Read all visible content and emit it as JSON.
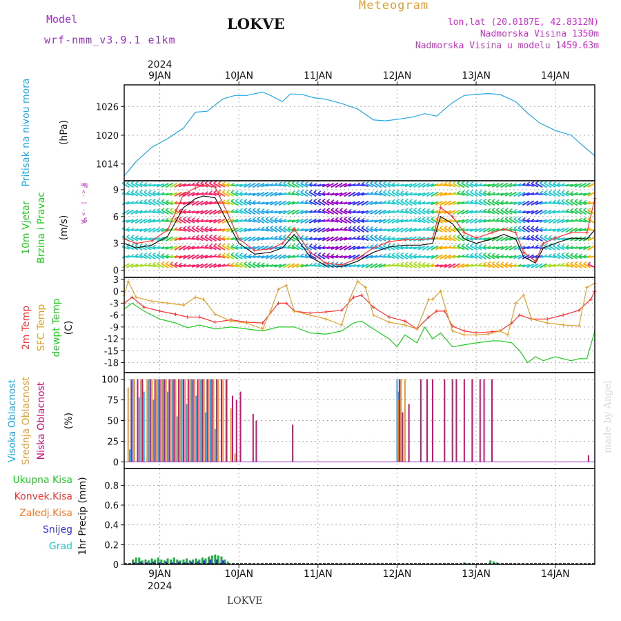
{
  "header": {
    "model_label": "Model",
    "model_name": "wrf-nmm_v3.9.1 e1km",
    "station": "LOKVE",
    "chart_kind": "Meteogram",
    "coords": "lon,lat (20.0187E, 42.8312N)",
    "elevation": "Nadmorska Visina 1350m",
    "model_elevation": "Nadmorska Visina u modelu 1459.63m"
  },
  "footer": {
    "station": "LOKVE",
    "credit": "made by Angel"
  },
  "colors": {
    "pressure": "#22a7e6",
    "wind_speed": "#111111",
    "gust": "#ff3333",
    "temp": "#ff3333",
    "sfc_temp": "#e0a030",
    "dewpt": "#22cc22",
    "high_cloud": "#22a7e6",
    "mid_cloud": "#e0a030",
    "low_cloud": "#cc1177",
    "total_precip": "#22aa44",
    "conv_precip": "#ff3333",
    "frozen_precip": "#ff7722",
    "snow": "#3333dd",
    "graupel": "#22cccc",
    "model_text": "#9933cc",
    "meta_text": "#cc33cc",
    "title_orange": "#e0a030"
  },
  "chart_data": [
    {
      "type": "line",
      "panel": "pressure",
      "ylabel": [
        "Pritisak na nivou mora",
        "(hPa)"
      ],
      "ylabel_colors": [
        "#22a7e6",
        "#111111"
      ],
      "yticks": [
        1014,
        1020,
        1026
      ],
      "ylim": [
        1010.5,
        1030.5
      ],
      "grid": true,
      "x_range": [
        8.55,
        14.5
      ],
      "series": [
        {
          "color": "#22a7e6",
          "x": [
            8.55,
            8.7,
            8.9,
            9.1,
            9.3,
            9.45,
            9.6,
            9.8,
            9.95,
            10.1,
            10.3,
            10.4,
            10.55,
            10.65,
            10.8,
            10.95,
            11.1,
            11.3,
            11.5,
            11.7,
            11.85,
            12.0,
            12.2,
            12.35,
            12.5,
            12.7,
            12.85,
            13.0,
            13.15,
            13.3,
            13.5,
            13.65,
            13.8,
            14.0,
            14.2,
            14.35,
            14.5
          ],
          "values": [
            1011.5,
            1014.5,
            1017.5,
            1019.3,
            1021.5,
            1024.8,
            1025,
            1027.6,
            1028.3,
            1028.3,
            1029,
            1028.3,
            1027,
            1028.6,
            1028.5,
            1027.8,
            1027.5,
            1026.6,
            1025.5,
            1023.2,
            1023,
            1023.3,
            1023.8,
            1024.5,
            1024,
            1026.8,
            1028.3,
            1028.5,
            1028.7,
            1028.5,
            1027,
            1024.6,
            1022.6,
            1021,
            1020,
            1017.8,
            1015.7
          ]
        }
      ]
    },
    {
      "type": "line",
      "panel": "wind",
      "ylabel": [
        "10m Vjetar",
        "Brzina i Pravac",
        "(m/s)"
      ],
      "ylabel_colors": [
        "#22cc22",
        "#22cc22",
        "#111111"
      ],
      "compass": [
        "N",
        "W <- | -> E",
        "S"
      ],
      "yticks": [
        0,
        3,
        6,
        9
      ],
      "ylim": [
        -0.8,
        10
      ],
      "grid": true,
      "series": [
        {
          "name": "speed",
          "color": "#111111",
          "x": [
            8.55,
            8.7,
            8.9,
            9.1,
            9.3,
            9.45,
            9.55,
            9.7,
            9.85,
            10.0,
            10.2,
            10.4,
            10.55,
            10.7,
            10.9,
            11.1,
            11.3,
            11.5,
            11.7,
            11.9,
            12.1,
            12.3,
            12.45,
            12.55,
            12.7,
            12.85,
            13.0,
            13.2,
            13.35,
            13.5,
            13.6,
            13.75,
            13.85,
            14.0,
            14.2,
            14.4,
            14.5
          ],
          "values": [
            3,
            2.5,
            2.8,
            3.8,
            7,
            8,
            8.3,
            8.1,
            5.5,
            3,
            1.8,
            2,
            2.5,
            4,
            1.5,
            0.5,
            0.4,
            1,
            2,
            2.6,
            2.8,
            2.8,
            3,
            6,
            5.2,
            3.5,
            3,
            3.5,
            4,
            3.5,
            1.5,
            0.8,
            2.5,
            3,
            3.6,
            3.5,
            4.5
          ]
        },
        {
          "name": "gust",
          "color": "#ff3333",
          "x": [
            8.55,
            8.7,
            8.9,
            9.1,
            9.3,
            9.45,
            9.55,
            9.7,
            9.85,
            10.0,
            10.2,
            10.4,
            10.55,
            10.7,
            10.9,
            11.1,
            11.3,
            11.5,
            11.7,
            11.9,
            12.1,
            12.3,
            12.45,
            12.55,
            12.7,
            12.85,
            13.0,
            13.2,
            13.35,
            13.5,
            13.6,
            13.75,
            13.85,
            14.0,
            14.2,
            14.4,
            14.5
          ],
          "values": [
            3.5,
            3,
            3.3,
            4.5,
            8.5,
            9.2,
            9.5,
            9.3,
            6.5,
            3.5,
            2.2,
            2.4,
            3,
            4.6,
            2,
            0.8,
            0.6,
            1.3,
            2.5,
            3.2,
            3.4,
            3.4,
            3.6,
            7,
            6,
            4.2,
            3.6,
            4.2,
            4.6,
            4.2,
            2,
            1,
            3,
            3.6,
            4.2,
            4.2,
            8
          ]
        }
      ],
      "arrow_band_levels": [
        0.5,
        1.5,
        2.5,
        3.5,
        4.5,
        5.5,
        6.5,
        7.5,
        8.5,
        9.5
      ],
      "arrow_colors_by_speed": [
        "#9900cc",
        "#3333ff",
        "#22a7e6",
        "#22cccc",
        "#22cc55",
        "#aadd22",
        "#ffaa00",
        "#ff5533",
        "#ff2266"
      ]
    },
    {
      "type": "line",
      "panel": "temperature",
      "ylabel": [
        "2m Temp",
        "SFC Temp",
        "dewpt Temp",
        "(C)"
      ],
      "ylabel_colors": [
        "#ff3333",
        "#e0a030",
        "#22cc22",
        "#111111"
      ],
      "yticks": [
        3,
        0,
        -3,
        -6,
        -9,
        -12,
        -15,
        -18
      ],
      "ylim": [
        -20.5,
        3.5
      ],
      "grid": true,
      "series": [
        {
          "name": "2m Temp",
          "color": "#ff3333",
          "x": [
            8.55,
            8.65,
            8.8,
            9.0,
            9.2,
            9.35,
            9.5,
            9.7,
            9.9,
            10.1,
            10.3,
            10.5,
            10.6,
            10.7,
            10.9,
            11.1,
            11.3,
            11.45,
            11.55,
            11.7,
            11.9,
            12.1,
            12.25,
            12.4,
            12.5,
            12.6,
            12.7,
            12.85,
            13.0,
            13.2,
            13.3,
            13.45,
            13.55,
            13.7,
            13.9,
            14.1,
            14.3,
            14.45,
            14.5
          ],
          "values": [
            -3,
            -1.5,
            -4,
            -5,
            -5.8,
            -6.5,
            -6.5,
            -7.8,
            -7.2,
            -7.8,
            -8,
            -3,
            -3,
            -5,
            -5.5,
            -5.2,
            -4.8,
            -1.5,
            -1,
            -4,
            -6.5,
            -7.5,
            -9.5,
            -6.5,
            -5,
            -5,
            -8.8,
            -10,
            -10.5,
            -10.2,
            -10,
            -8,
            -6,
            -7,
            -7,
            -6,
            -4.8,
            -2,
            0
          ]
        },
        {
          "name": "SFC Temp",
          "color": "#e0a030",
          "x": [
            8.55,
            8.6,
            8.7,
            8.9,
            9.1,
            9.3,
            9.45,
            9.55,
            9.7,
            9.9,
            10.1,
            10.3,
            10.4,
            10.5,
            10.6,
            10.7,
            10.9,
            11.1,
            11.3,
            11.4,
            11.5,
            11.6,
            11.7,
            11.9,
            12.1,
            12.25,
            12.4,
            12.45,
            12.55,
            12.7,
            12.85,
            13.0,
            13.15,
            13.3,
            13.4,
            13.5,
            13.6,
            13.7,
            13.9,
            14.1,
            14.3,
            14.4,
            14.5
          ],
          "values": [
            -1,
            2.5,
            -1.5,
            -2.5,
            -3,
            -3.5,
            -1.5,
            -2,
            -5.8,
            -7.5,
            -8,
            -9.5,
            -5,
            0.5,
            1.5,
            -5,
            -6,
            -7,
            -8.5,
            -2,
            2.5,
            1,
            -6,
            -7.8,
            -8.5,
            -9.5,
            -2,
            -2,
            0,
            -10,
            -11,
            -11,
            -10.8,
            -10,
            -11,
            -3,
            -1,
            -7,
            -8,
            -8.5,
            -8.7,
            1,
            2
          ]
        },
        {
          "name": "dewpt Temp",
          "color": "#22cc22",
          "x": [
            8.55,
            8.65,
            8.8,
            9.0,
            9.2,
            9.35,
            9.5,
            9.7,
            9.9,
            10.1,
            10.3,
            10.5,
            10.7,
            10.9,
            11.1,
            11.3,
            11.45,
            11.55,
            11.7,
            11.9,
            12.0,
            12.1,
            12.25,
            12.35,
            12.45,
            12.55,
            12.7,
            12.85,
            13.0,
            13.2,
            13.3,
            13.45,
            13.55,
            13.65,
            13.75,
            13.85,
            14.0,
            14.2,
            14.3,
            14.4,
            14.5
          ],
          "values": [
            -4.5,
            -3,
            -5,
            -7,
            -8,
            -9.2,
            -8.5,
            -9.5,
            -9,
            -9.5,
            -10,
            -9,
            -9,
            -10.5,
            -10.8,
            -10,
            -8,
            -7.5,
            -9.5,
            -12,
            -14,
            -11,
            -13,
            -9,
            -12,
            -10.5,
            -14,
            -13.5,
            -13,
            -12.5,
            -12.5,
            -13,
            -15,
            -18,
            -16.5,
            -17.5,
            -16.5,
            -17.5,
            -17,
            -17,
            -10
          ]
        }
      ]
    },
    {
      "type": "bar",
      "panel": "cloud",
      "ylabel": [
        "Visoka Oblacnost",
        "Srednja Oblacnost",
        "Niska Oblacnost",
        "(%)"
      ],
      "ylabel_colors": [
        "#22a7e6",
        "#e0a030",
        "#cc1177",
        "#111111"
      ],
      "yticks": [
        0,
        25,
        50,
        75,
        100
      ],
      "ylim": [
        -8,
        108
      ],
      "grid": true,
      "series": [
        {
          "name": "Visoka Oblacnost",
          "color": "#22a7e6",
          "x": [
            8.58,
            8.62,
            8.66,
            8.7,
            8.74,
            8.8,
            8.86,
            8.92,
            8.98,
            9.04,
            9.1,
            9.16,
            9.22,
            9.28,
            9.34,
            9.4,
            9.46,
            9.52,
            9.58,
            9.64,
            9.7,
            12.0,
            12.02,
            12.04
          ],
          "values": [
            0,
            15,
            100,
            0,
            78,
            85,
            100,
            75,
            100,
            100,
            85,
            100,
            55,
            100,
            70,
            100,
            80,
            100,
            60,
            100,
            40,
            100,
            85,
            100
          ]
        },
        {
          "name": "Srednja Oblacnost",
          "color": "#e0a030",
          "x": [
            8.6,
            8.68,
            8.76,
            8.84,
            8.9,
            8.96,
            9.02,
            9.08,
            9.14,
            9.2,
            9.26,
            9.32,
            9.38,
            9.44,
            9.5,
            9.56,
            9.62,
            9.68,
            9.74,
            9.8,
            9.85,
            9.9,
            9.95,
            12.01,
            12.05,
            12.1
          ],
          "values": [
            90,
            100,
            100,
            100,
            100,
            100,
            100,
            100,
            100,
            100,
            100,
            100,
            100,
            100,
            100,
            100,
            100,
            100,
            100,
            100,
            100,
            65,
            10,
            75,
            100,
            100
          ]
        },
        {
          "name": "Niska Oblacnost",
          "color": "#cc1177",
          "x": [
            8.64,
            8.72,
            8.78,
            8.88,
            8.94,
            9.0,
            9.06,
            9.12,
            9.18,
            9.24,
            9.3,
            9.36,
            9.42,
            9.48,
            9.54,
            9.6,
            9.66,
            9.72,
            9.78,
            9.84,
            9.92,
            9.97,
            10.02,
            10.18,
            10.22,
            10.68,
            12.03,
            12.07,
            12.15,
            12.3,
            12.38,
            12.45,
            12.6,
            12.7,
            12.75,
            12.85,
            12.95,
            13.05,
            13.1,
            13.2,
            14.42
          ],
          "values": [
            100,
            100,
            100,
            100,
            100,
            100,
            100,
            100,
            100,
            100,
            100,
            100,
            100,
            100,
            100,
            100,
            100,
            100,
            100,
            100,
            80,
            75,
            85,
            58,
            50,
            45,
            100,
            60,
            70,
            100,
            100,
            100,
            100,
            100,
            100,
            100,
            100,
            100,
            100,
            100,
            8
          ]
        }
      ]
    },
    {
      "type": "bar",
      "panel": "precip",
      "ylabel": [
        "1hr Precip (mm)"
      ],
      "legend": [
        "Ukupna Kisa",
        "Konvek.Kisa",
        "Zaledj.Kisa",
        "Snijeg",
        "Grad"
      ],
      "legend_colors": [
        "#22cc22",
        "#ff3333",
        "#ff7722",
        "#3333dd",
        "#22cccc"
      ],
      "yticks": [
        0,
        0.2,
        0.4,
        0.6,
        0.8
      ],
      "yticklabels": [
        "0",
        "0.2",
        "0.4",
        "0.6",
        "0.8"
      ],
      "ylim": [
        0,
        0.97
      ],
      "grid": true,
      "series": [
        {
          "name": "Ukupna Kisa",
          "color": "#22aa44",
          "x": [
            8.66,
            8.7,
            8.74,
            8.78,
            8.82,
            8.86,
            8.9,
            8.94,
            8.98,
            9.02,
            9.06,
            9.1,
            9.14,
            9.18,
            9.22,
            9.26,
            9.3,
            9.34,
            9.38,
            9.42,
            9.46,
            9.5,
            9.54,
            9.58,
            9.62,
            9.66,
            9.7,
            9.74,
            9.78,
            9.82,
            9.86,
            12.85,
            12.88,
            13.18,
            13.22,
            13.26
          ],
          "values": [
            0.05,
            0.07,
            0.07,
            0.04,
            0.05,
            0.04,
            0.06,
            0.05,
            0.07,
            0.05,
            0.04,
            0.06,
            0.05,
            0.07,
            0.05,
            0.04,
            0.05,
            0.06,
            0.04,
            0.05,
            0.06,
            0.05,
            0.07,
            0.06,
            0.08,
            0.09,
            0.1,
            0.09,
            0.08,
            0.05,
            0.03,
            0.02,
            0.01,
            0.04,
            0.03,
            0.02
          ]
        },
        {
          "name": "Snijeg",
          "color": "#3333dd",
          "x": [
            8.68,
            8.76,
            8.84,
            8.92,
            9.0,
            9.08,
            9.16,
            9.24,
            9.32,
            9.4,
            9.48,
            9.56,
            9.64,
            9.72,
            9.8
          ],
          "values": [
            0.02,
            0.03,
            0.02,
            0.03,
            0.02,
            0.03,
            0.02,
            0.03,
            0.02,
            0.03,
            0.03,
            0.04,
            0.05,
            0.05,
            0.04
          ]
        }
      ]
    }
  ],
  "x_axis": {
    "year_label": "2024",
    "ticks": [
      {
        "value": 9,
        "label": "9JAN"
      },
      {
        "value": 10,
        "label": "10JAN"
      },
      {
        "value": 11,
        "label": "11JAN"
      },
      {
        "value": 12,
        "label": "12JAN"
      },
      {
        "value": 13,
        "label": "13JAN"
      },
      {
        "value": 14,
        "label": "14JAN"
      }
    ]
  }
}
